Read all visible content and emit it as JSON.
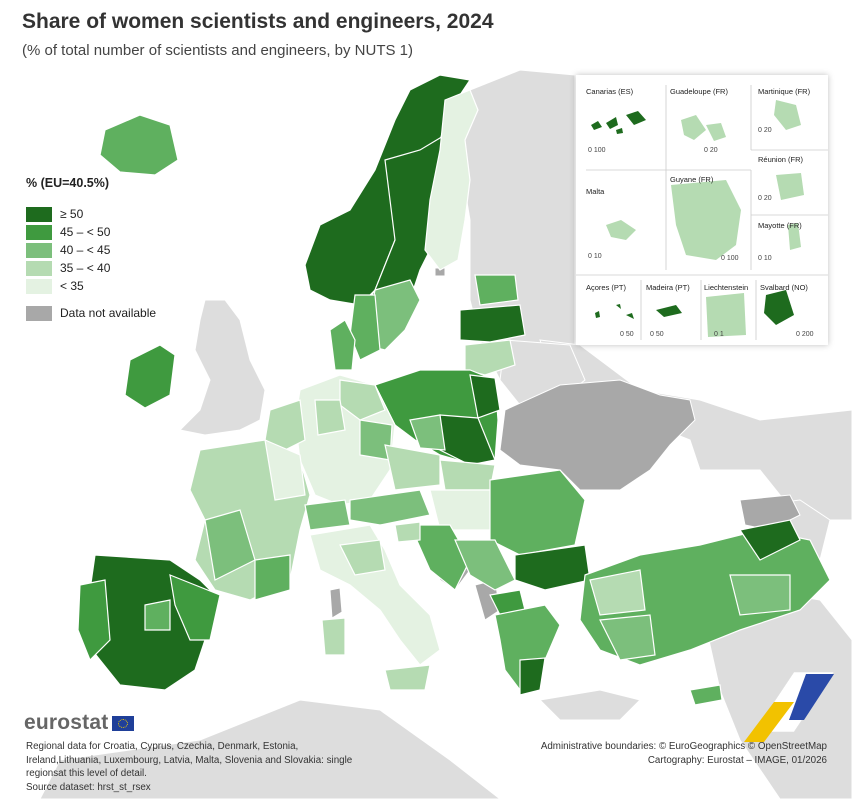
{
  "title": "Share of women scientists and engineers, 2024",
  "subtitle": "(% of total number of scientists and engineers, by NUTS 1)",
  "legend": {
    "title": "% (EU=40.5%)",
    "items": [
      {
        "label": "≥ 50",
        "color": "#1e6b1e"
      },
      {
        "label": "45 – < 50",
        "color": "#3f9a3f"
      },
      {
        "label": "40 – < 45",
        "color": "#7cbf7c"
      },
      {
        "label": "35 – < 40",
        "color": "#b5dbb2"
      },
      {
        "label": "< 35",
        "color": "#e4f2e2"
      }
    ],
    "na": {
      "label": "Data not available",
      "color": "#a8a8a8"
    }
  },
  "insets": {
    "canarias": "Canarias (ES)",
    "guadeloupe": "Guadeloupe (FR)",
    "martinique": "Martinique (FR)",
    "reunion": "Réunion (FR)",
    "malta": "Malta",
    "guyane": "Guyane (FR)",
    "mayotte": "Mayotte (FR)",
    "acores": "Açores (PT)",
    "madeira": "Madeira (PT)",
    "liechtenstein": "Liechtenstein",
    "svalbard": "Svalbard (NO)",
    "scales": {
      "canarias": "0   100",
      "guadeloupe": "0   20",
      "martinique": "0   20",
      "reunion": "0   20",
      "malta": "0   10",
      "guyane": "0   100",
      "mayotte": "0   10",
      "acores": "0   50",
      "madeira": "0   50",
      "liechtenstein": "0   1",
      "svalbard": "0   200"
    }
  },
  "logo": "eurostat",
  "note_lines": [
    "Regional data for Croatia, Cyprus, Czechia, Denmark, Estonia,",
    "Ireland,Lithuania, Luxembourg, Latvia, Malta, Slovenia and Slovakia: single",
    "regionsat this level of detail.",
    "Source dataset: hrst_st_rsex"
  ],
  "credits": [
    "Administrative boundaries: © EuroGeographics © OpenStreetMap",
    "Cartography: Eurostat – IMAGE, 01/2026"
  ],
  "colors": {
    "sea": "#ffffff",
    "non_eu_land": "#dddddd",
    "border": "#ffffff"
  }
}
